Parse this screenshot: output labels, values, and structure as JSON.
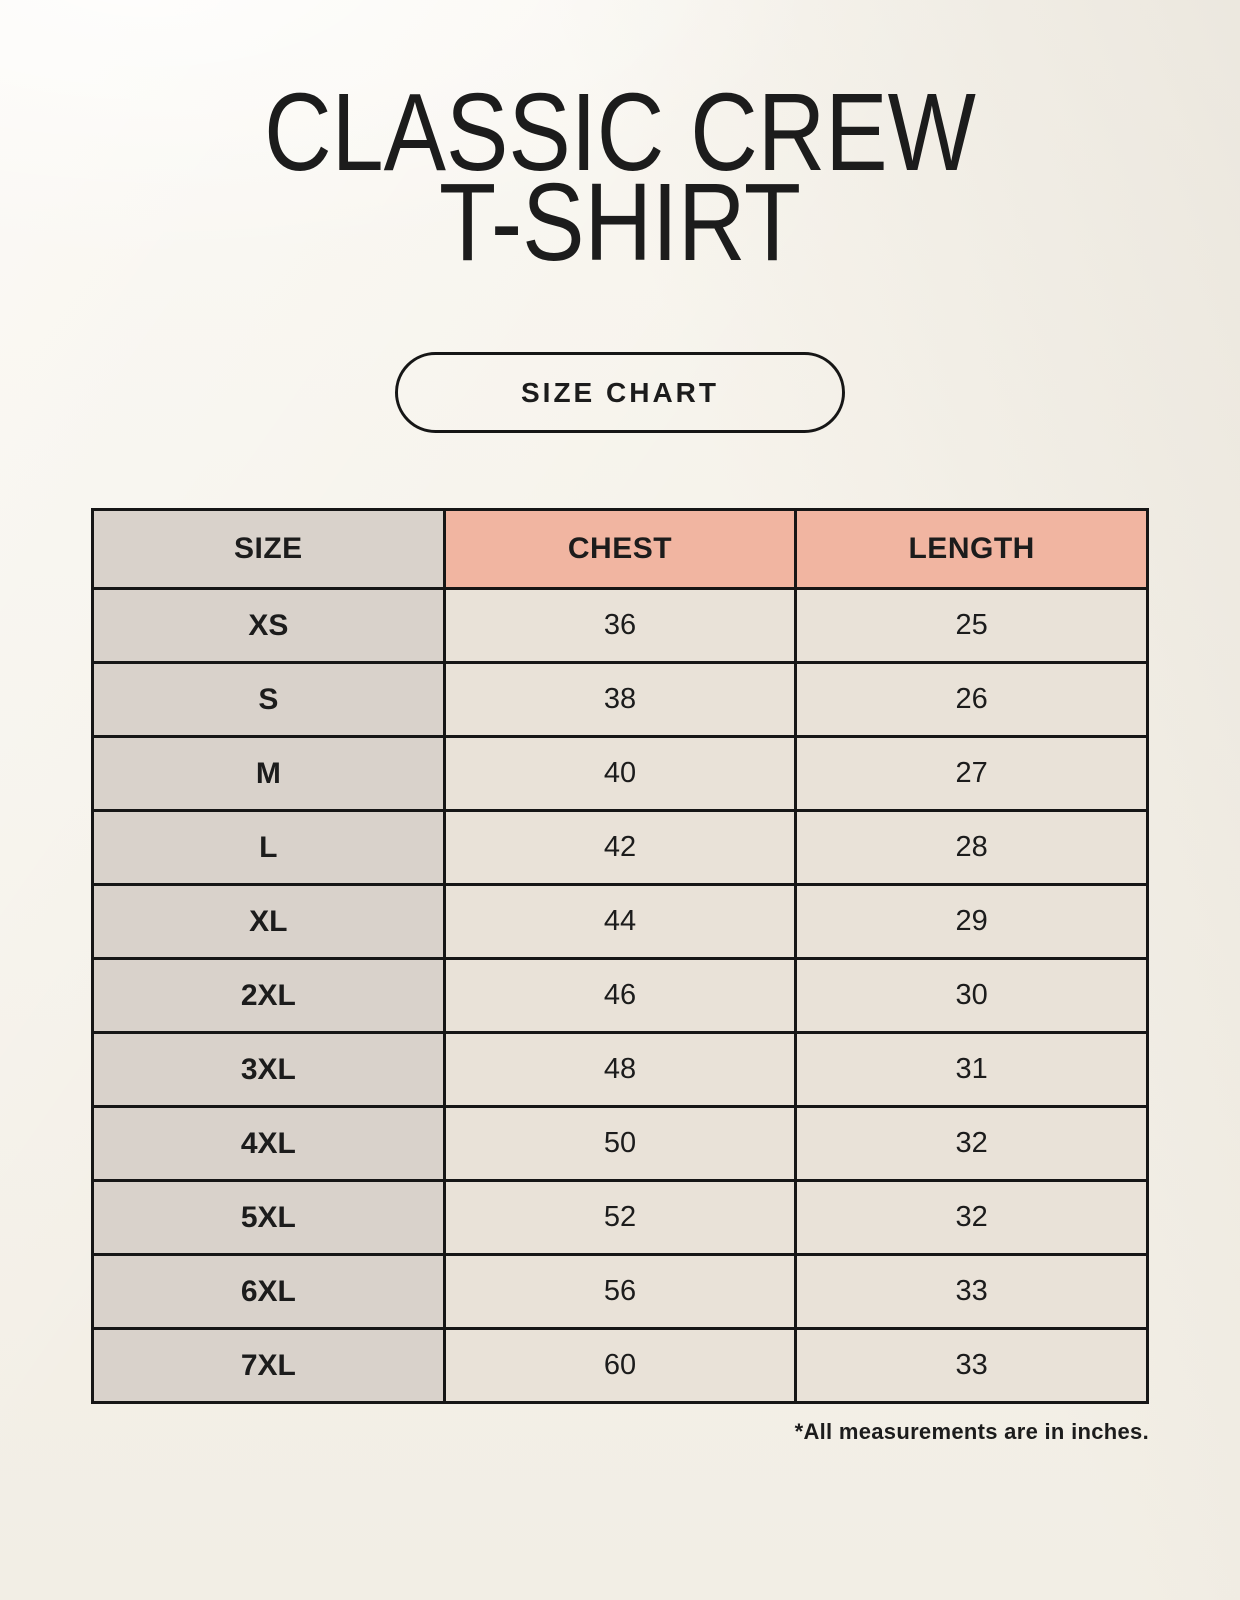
{
  "header": {
    "title_line1": "CLASSIC CREW",
    "title_line2": "T-SHIRT",
    "button_label": "SIZE CHART"
  },
  "footnote": "*All measurements are in inches.",
  "colors": {
    "page_bg": "#f6f3eb",
    "size_col_bg": "#d9d2cb",
    "accent_header_bg": "#f1b5a1",
    "value_cell_bg": "#e9e2d8",
    "table_border": "#161616",
    "text": "#1c1c1c"
  },
  "chart_data": {
    "type": "table",
    "title": "Classic Crew T-Shirt Size Chart",
    "columns": [
      "SIZE",
      "CHEST",
      "LENGTH"
    ],
    "rows": [
      [
        "XS",
        "36",
        "25"
      ],
      [
        "S",
        "38",
        "26"
      ],
      [
        "M",
        "40",
        "27"
      ],
      [
        "L",
        "42",
        "28"
      ],
      [
        "XL",
        "44",
        "29"
      ],
      [
        "2XL",
        "46",
        "30"
      ],
      [
        "3XL",
        "48",
        "31"
      ],
      [
        "4XL",
        "50",
        "32"
      ],
      [
        "5XL",
        "52",
        "32"
      ],
      [
        "6XL",
        "56",
        "33"
      ],
      [
        "7XL",
        "60",
        "33"
      ]
    ],
    "units_note": "*All measurements are in inches."
  }
}
